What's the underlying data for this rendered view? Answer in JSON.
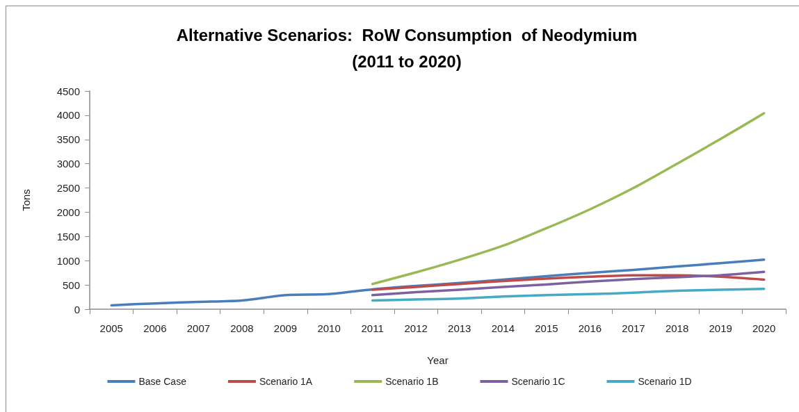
{
  "chart_data": {
    "type": "line",
    "title": "Alternative Scenarios:  RoW Consumption  of Neodymium\n(2011 to 2020)",
    "xlabel": "Year",
    "ylabel": "Tons",
    "categories": [
      "2005",
      "2006",
      "2007",
      "2008",
      "2009",
      "2010",
      "2011",
      "2012",
      "2013",
      "2014",
      "2015",
      "2016",
      "2017",
      "2018",
      "2019",
      "2020"
    ],
    "series": [
      {
        "name": "Base Case",
        "color": "#4a7ebb",
        "values": [
          80,
          120,
          150,
          180,
          290,
          310,
          410,
          480,
          540,
          610,
          680,
          750,
          810,
          880,
          950,
          1020
        ]
      },
      {
        "name": "Scenario 1A",
        "color": "#be4b48",
        "values": [
          null,
          null,
          null,
          null,
          null,
          null,
          400,
          460,
          520,
          580,
          630,
          670,
          700,
          700,
          670,
          610
        ]
      },
      {
        "name": "Scenario 1B",
        "color": "#98b954",
        "values": [
          null,
          null,
          null,
          null,
          null,
          null,
          520,
          760,
          1020,
          1310,
          1670,
          2060,
          2500,
          3000,
          3510,
          4040
        ]
      },
      {
        "name": "Scenario 1C",
        "color": "#7d60a0",
        "values": [
          null,
          null,
          null,
          null,
          null,
          null,
          290,
          350,
          400,
          460,
          510,
          570,
          620,
          660,
          700,
          770
        ]
      },
      {
        "name": "Scenario 1D",
        "color": "#46aac5",
        "values": [
          null,
          null,
          null,
          null,
          null,
          null,
          180,
          200,
          220,
          260,
          290,
          310,
          340,
          380,
          400,
          420
        ]
      }
    ],
    "ylim": [
      0,
      4500
    ],
    "yticks": [
      0,
      500,
      1000,
      1500,
      2000,
      2500,
      3000,
      3500,
      4000,
      4500
    ],
    "grid": false,
    "legend": "bottom",
    "marker": "none",
    "line_style": "solid"
  }
}
